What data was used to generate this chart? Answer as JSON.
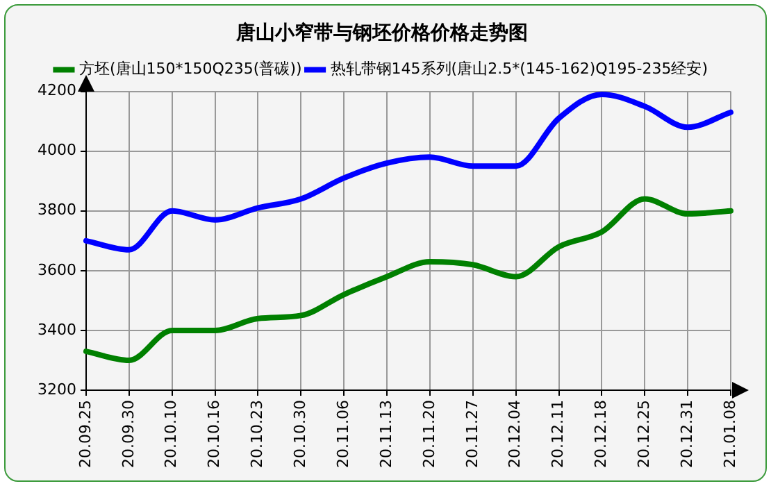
{
  "chart_data": {
    "type": "line",
    "title": "唐山小窄带与钢坯价格价格走势图",
    "categories": [
      "20.09.25",
      "20.09.30",
      "20.10.10",
      "20.10.16",
      "20.10.23",
      "20.10.30",
      "20.11.06",
      "20.11.13",
      "20.11.20",
      "20.11.27",
      "20.12.04",
      "20.12.11",
      "20.12.18",
      "20.12.25",
      "20.12.31",
      "21.01.08"
    ],
    "series": [
      {
        "name": "方坯(唐山150*150Q235(普碳))",
        "color": "#008000",
        "values": [
          3330,
          3300,
          3400,
          3400,
          3440,
          3450,
          3520,
          3580,
          3630,
          3620,
          3580,
          3680,
          3730,
          3840,
          3790,
          3800
        ]
      },
      {
        "name": "热轧带钢145系列(唐山2.5*(145-162)Q195-235经安)",
        "color": "#0000ff",
        "values": [
          3700,
          3670,
          3800,
          3770,
          3810,
          3840,
          3910,
          3960,
          3980,
          3950,
          3950,
          4110,
          4190,
          4150,
          4080,
          4130
        ]
      }
    ],
    "ylim": [
      3200,
      4200
    ],
    "yticks": [
      3200,
      3400,
      3600,
      3800,
      4000,
      4200
    ],
    "grid": true,
    "legend": "top",
    "marker": "none",
    "line_style": "solid"
  }
}
